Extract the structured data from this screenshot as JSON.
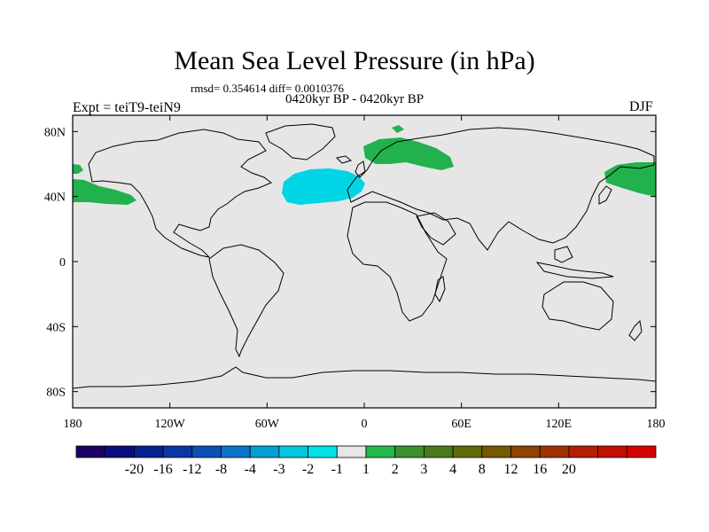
{
  "title": "Mean Sea Level Pressure (in hPa)",
  "stats": "rmsd= 0.354614  diff= 0.0010376",
  "period": "0420kyr BP - 0420kyr BP",
  "experiment": "Expt = teiT9-teiN9",
  "season": "DJF",
  "colors": {
    "land_background": "#e6e6e6",
    "coastline": "#000000",
    "anomaly_positive": "#22b14c",
    "anomaly_negative": "#00d5e6"
  },
  "axes": {
    "x_ticks": [
      {
        "lon": -180,
        "label": "180"
      },
      {
        "lon": -120,
        "label": "120W"
      },
      {
        "lon": -60,
        "label": "60W"
      },
      {
        "lon": 0,
        "label": "0"
      },
      {
        "lon": 60,
        "label": "60E"
      },
      {
        "lon": 120,
        "label": "120E"
      },
      {
        "lon": 180,
        "label": "180"
      }
    ],
    "y_ticks": [
      {
        "lat": 80,
        "label": "80N"
      },
      {
        "lat": 40,
        "label": "40N"
      },
      {
        "lat": 0,
        "label": "0"
      },
      {
        "lat": -40,
        "label": "40S"
      },
      {
        "lat": -80,
        "label": "80S"
      }
    ],
    "lon_range": [
      -180,
      180
    ],
    "lat_range": [
      -90,
      90
    ]
  },
  "colorbar": {
    "colors": [
      "#1d0063",
      "#0b0c7c",
      "#06208f",
      "#0a36a2",
      "#0b4fb5",
      "#0b72c8",
      "#04a0d2",
      "#00c8de",
      "#00e1e6",
      "#e6e6e6",
      "#23b94a",
      "#3b8f2f",
      "#4a7a19",
      "#5f6b0a",
      "#755900",
      "#8c4400",
      "#a03200",
      "#b31f00",
      "#c30f00",
      "#d70000"
    ],
    "labels": [
      "-20",
      "-16",
      "-12",
      "-8",
      "-4",
      "-3",
      "-2",
      "-1",
      "1",
      "2",
      "3",
      "4",
      "8",
      "12",
      "16",
      "20"
    ]
  }
}
